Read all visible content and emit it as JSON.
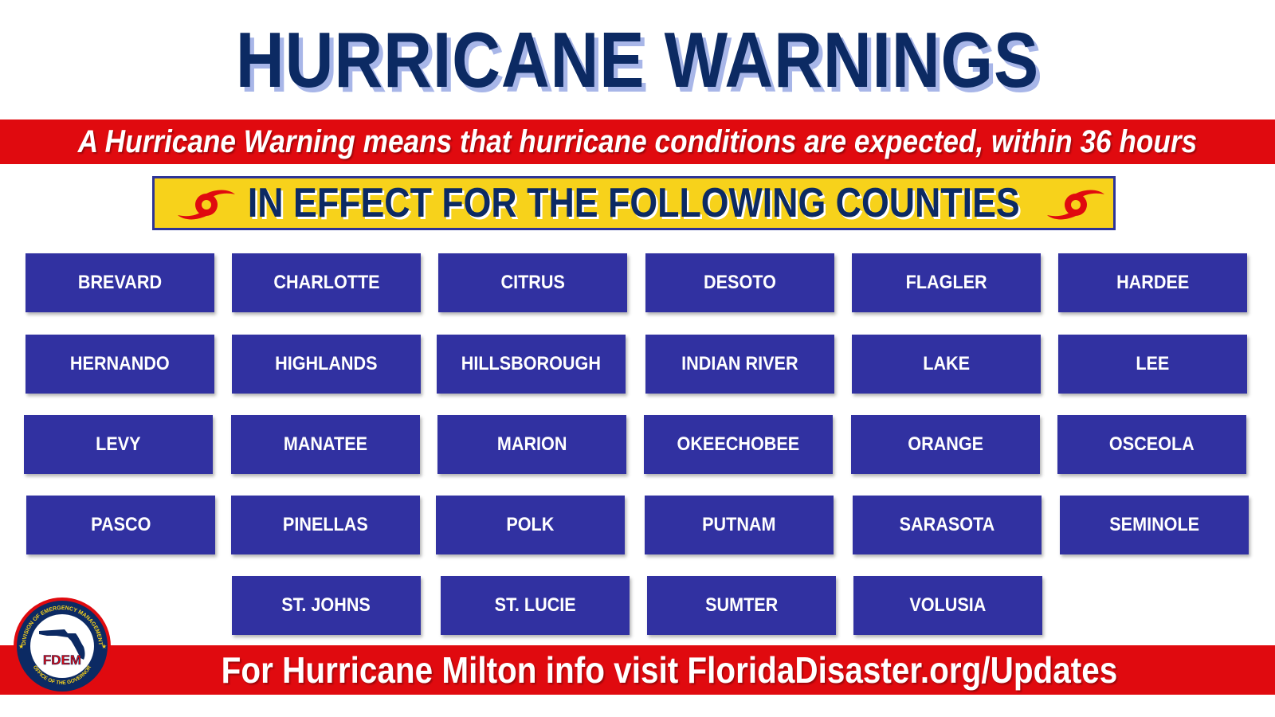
{
  "header": {
    "title": "HURRICANE WARNINGS",
    "subtitle": "A Hurricane Warning means that hurricane conditions are expected, within 36 hours",
    "effect_label": "IN EFFECT FOR THE FOLLOWING COUNTIES"
  },
  "counties": [
    "BREVARD",
    "CHARLOTTE",
    "CITRUS",
    "DESOTO",
    "FLAGLER",
    "HARDEE",
    "HERNANDO",
    "HIGHLANDS",
    "HILLSBOROUGH",
    "INDIAN RIVER",
    "LAKE",
    "LEE",
    "LEVY",
    "MANATEE",
    "MARION",
    "OKEECHOBEE",
    "ORANGE",
    "OSCEOLA",
    "PASCO",
    "PINELLAS",
    "POLK",
    "PUTNAM",
    "SARASOTA",
    "SEMINOLE",
    "ST. JOHNS",
    "ST. LUCIE",
    "SUMTER",
    "VOLUSIA"
  ],
  "footer": {
    "text": "For Hurricane Milton info visit FloridaDisaster.org/Updates"
  },
  "logo": {
    "abbr": "FDEM",
    "ring_top": "DIVISION OF EMERGENCY MANAGEMENT",
    "ring_bottom": "OFFICE OF THE GOVERNOR"
  },
  "icons": {
    "hurricane_symbol": "hurricane-icon"
  },
  "colors": {
    "title": "#0c2a63",
    "band_red": "#e00a0f",
    "box_yellow": "#f7d21b",
    "county_blue": "#3131a1"
  }
}
